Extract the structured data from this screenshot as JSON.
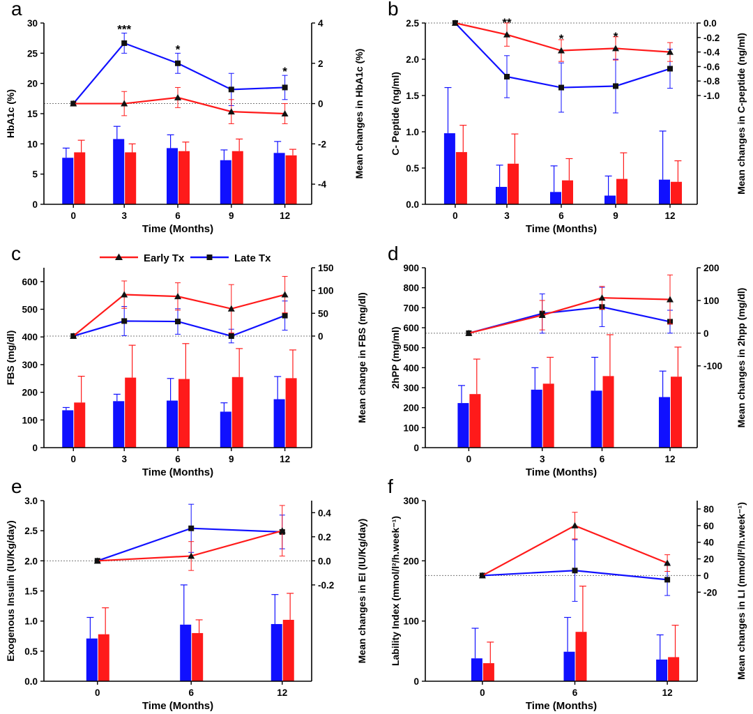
{
  "colors": {
    "early": "#ff1a1a",
    "late": "#1010ff",
    "axis": "#000000",
    "baseline": "#777777"
  },
  "legend": {
    "early_label": "Early Tx",
    "late_label": "Late Tx"
  },
  "chart_data": [
    {
      "panel": "a",
      "type": "bar",
      "xlabel": "Time (Months)",
      "ylabel": "HbA1c (%)",
      "y2label": "Mean changes in HbA1c (%)",
      "categories": [
        "0",
        "3",
        "6",
        "9",
        "12"
      ],
      "ylim": [
        0,
        30
      ],
      "yticks": [
        0,
        5,
        10,
        15,
        20,
        25,
        30
      ],
      "y2lim": [
        -5,
        4
      ],
      "y2ticks": [
        -4,
        -2,
        0,
        2,
        4
      ],
      "y2ticklabels": [
        "-4",
        "-2",
        "0",
        "2",
        "4"
      ],
      "bars": [
        {
          "name": "Late Tx",
          "values": [
            7.7,
            10.8,
            9.3,
            7.3,
            8.5
          ],
          "err": [
            1.6,
            2.1,
            2.2,
            1.7,
            1.9
          ]
        },
        {
          "name": "Early Tx",
          "values": [
            8.6,
            8.6,
            8.8,
            8.8,
            8.1
          ],
          "err": [
            2.0,
            1.4,
            1.5,
            2.0,
            1.0
          ]
        }
      ],
      "lines": [
        {
          "name": "Late Tx",
          "values": [
            0,
            3.0,
            2.0,
            0.7,
            0.8
          ],
          "err": [
            0,
            0.5,
            0.5,
            0.8,
            0.6
          ]
        },
        {
          "name": "Early Tx",
          "values": [
            0,
            0,
            0.3,
            -0.4,
            -0.5
          ],
          "err": [
            0,
            0.6,
            0.5,
            0.6,
            0.5
          ]
        }
      ],
      "annotations": [
        {
          "x": "3",
          "y": 3.5,
          "text": "***"
        },
        {
          "x": "6",
          "y": 2.5,
          "text": "*"
        },
        {
          "x": "12",
          "y": 1.4,
          "text": "*"
        }
      ]
    },
    {
      "panel": "b",
      "type": "bar",
      "xlabel": "Time (Months)",
      "ylabel": "C- Peptide (ng/ml)",
      "y2label": "Mean changes in C-peptide (ng/ml)",
      "categories": [
        "0",
        "3",
        "6",
        "9",
        "12"
      ],
      "ylim": [
        0,
        2.5
      ],
      "yticks": [
        0,
        0.5,
        1.0,
        1.5,
        2.0,
        2.5
      ],
      "yticklabels": [
        "0.0",
        "0.5",
        "1.0",
        "1.5",
        "2.0",
        "2.5"
      ],
      "y2lim": [
        -2.5,
        0
      ],
      "y2ticks": [
        -1.0,
        -0.8,
        -0.6,
        -0.4,
        -0.2,
        0
      ],
      "y2ticklabels": [
        "-1.0",
        "-0.8",
        "-0.6",
        "-0.4",
        "-0.2",
        "0.0"
      ],
      "bars": [
        {
          "name": "Late Tx",
          "values": [
            0.98,
            0.24,
            0.17,
            0.12,
            0.34
          ],
          "err": [
            0.63,
            0.3,
            0.36,
            0.27,
            0.67
          ]
        },
        {
          "name": "Early Tx",
          "values": [
            0.72,
            0.56,
            0.33,
            0.35,
            0.31
          ],
          "err": [
            0.37,
            0.41,
            0.3,
            0.36,
            0.29
          ]
        }
      ],
      "lines": [
        {
          "name": "Late Tx",
          "values": [
            0,
            -0.74,
            -0.89,
            -0.87,
            -0.63
          ],
          "err": [
            0,
            0.29,
            0.34,
            0.37,
            0.27
          ]
        },
        {
          "name": "Early Tx",
          "values": [
            0,
            -0.16,
            -0.38,
            -0.35,
            -0.4
          ],
          "err": [
            0,
            0.16,
            0.15,
            0.16,
            0.13
          ]
        }
      ],
      "annotations": [
        {
          "x": "3",
          "y": -0.05,
          "text": "**"
        },
        {
          "x": "6",
          "y": -0.27,
          "text": "*"
        },
        {
          "x": "9",
          "y": -0.24,
          "text": "*"
        }
      ]
    },
    {
      "panel": "c",
      "type": "bar",
      "xlabel": "Time (Months)",
      "ylabel": "FBS (mg/dl)",
      "y2label": "Mean change in FBS (mg/dl)",
      "categories": [
        "0",
        "3",
        "6",
        "9",
        "12"
      ],
      "ylim": [
        0,
        650
      ],
      "yticks": [
        0,
        100,
        200,
        300,
        400,
        500,
        600
      ],
      "y2lim": [
        -245,
        150
      ],
      "y2ticks": [
        0,
        50,
        100,
        150
      ],
      "y2ticklabels": [
        "0",
        "50",
        "100",
        "150"
      ],
      "bars": [
        {
          "name": "Late Tx",
          "values": [
            135,
            168,
            170,
            130,
            175
          ],
          "err": [
            10,
            25,
            80,
            32,
            82
          ]
        },
        {
          "name": "Early Tx",
          "values": [
            163,
            253,
            248,
            255,
            251
          ],
          "err": [
            95,
            117,
            128,
            103,
            102
          ]
        }
      ],
      "lines": [
        {
          "name": "Late Tx",
          "values": [
            0,
            33,
            32,
            0,
            45
          ],
          "err": [
            0,
            32,
            28,
            15,
            32
          ]
        },
        {
          "name": "Early Tx",
          "values": [
            0,
            91,
            87,
            60,
            91
          ],
          "err": [
            0,
            30,
            30,
            53,
            40
          ]
        }
      ],
      "annotations": []
    },
    {
      "panel": "d",
      "type": "bar",
      "xlabel": "Time (Months)",
      "ylabel": "2hPP (mg/ml)",
      "y2label": "Mean changes in 2hpp (mg/dl)",
      "categories": [
        "0",
        "3",
        "6",
        "12"
      ],
      "ylim": [
        0,
        900
      ],
      "yticks": [
        0,
        100,
        200,
        300,
        400,
        500,
        600,
        700,
        800,
        900
      ],
      "y2lim": [
        -350,
        200
      ],
      "y2ticks": [
        -100,
        0,
        100,
        200
      ],
      "y2ticklabels": [
        "-100",
        "0",
        "100",
        "200"
      ],
      "bars": [
        {
          "name": "Late Tx",
          "values": [
            223,
            290,
            285,
            253
          ],
          "err": [
            88,
            110,
            167,
            130
          ]
        },
        {
          "name": "Early Tx",
          "values": [
            268,
            320,
            358,
            355
          ],
          "err": [
            175,
            132,
            207,
            148
          ]
        }
      ],
      "lines": [
        {
          "name": "Late Tx",
          "values": [
            0,
            60,
            80,
            35
          ],
          "err": [
            0,
            60,
            60,
            35
          ]
        },
        {
          "name": "Early Tx",
          "values": [
            0,
            55,
            108,
            103
          ],
          "err": [
            0,
            45,
            35,
            75
          ]
        }
      ],
      "annotations": []
    },
    {
      "panel": "e",
      "type": "bar",
      "xlabel": "Time (Months)",
      "ylabel": "Exogenous Insulin (IU/Kg/day)",
      "y2label": "Mean changes in EI (IU/Kg/day)",
      "categories": [
        "0",
        "6",
        "12"
      ],
      "ylim": [
        0,
        3.0
      ],
      "yticks": [
        0,
        0.5,
        1.0,
        1.5,
        2.0,
        2.5,
        3.0
      ],
      "yticklabels": [
        "0.0",
        "0.5",
        "1.0",
        "1.5",
        "2.0",
        "2.5",
        "3.0"
      ],
      "y2lim": [
        -1.0,
        0.5
      ],
      "y2ticks": [
        -0.2,
        0,
        0.2,
        0.4
      ],
      "y2ticklabels": [
        "-0.2",
        "0.0",
        "0.2",
        "0.4"
      ],
      "bars": [
        {
          "name": "Late Tx",
          "values": [
            0.71,
            0.94,
            0.95
          ],
          "err": [
            0.35,
            0.66,
            0.49
          ]
        },
        {
          "name": "Early Tx",
          "values": [
            0.78,
            0.8,
            1.02
          ],
          "err": [
            0.44,
            0.22,
            0.44
          ]
        }
      ],
      "lines": [
        {
          "name": "Late Tx",
          "values": [
            0,
            0.27,
            0.24
          ],
          "err": [
            0,
            0.2,
            0.14
          ]
        },
        {
          "name": "Early Tx",
          "values": [
            0,
            0.04,
            0.25
          ],
          "err": [
            0,
            0.12,
            0.21
          ]
        }
      ],
      "annotations": []
    },
    {
      "panel": "f",
      "type": "bar",
      "xlabel": "Time (Months)",
      "ylabel": "Lability Index (mmol/l²/h.week⁻¹)",
      "y2label": "Mean changes in LI (mmol/l²/h.week⁻¹)",
      "categories": [
        "0",
        "6",
        "12"
      ],
      "ylim": [
        0,
        300
      ],
      "yticks": [
        0,
        100,
        200,
        300
      ],
      "y2lim": [
        -127,
        90
      ],
      "y2ticks": [
        -20,
        0,
        20,
        40,
        60,
        80
      ],
      "y2ticklabels": [
        "-20",
        "0",
        "20",
        "40",
        "60",
        "80"
      ],
      "bars": [
        {
          "name": "Late Tx",
          "values": [
            38,
            49,
            36
          ],
          "err": [
            50,
            57,
            41
          ]
        },
        {
          "name": "Early Tx",
          "values": [
            30,
            82,
            40
          ],
          "err": [
            35,
            76,
            53
          ]
        }
      ],
      "lines": [
        {
          "name": "Late Tx",
          "values": [
            0,
            6,
            -5
          ],
          "err": [
            0,
            37,
            19
          ]
        },
        {
          "name": "Early Tx",
          "values": [
            0,
            60,
            15
          ],
          "err": [
            0,
            16,
            10
          ]
        }
      ],
      "annotations": []
    }
  ]
}
